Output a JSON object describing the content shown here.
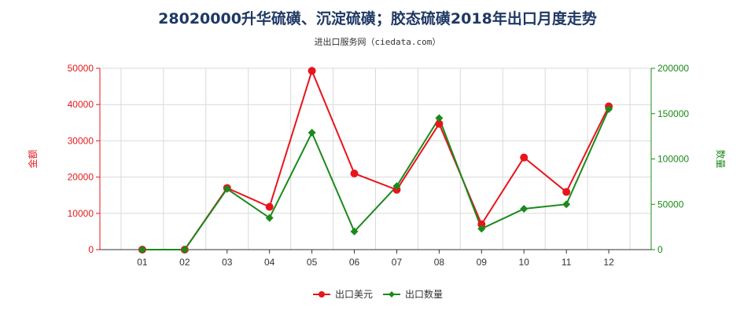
{
  "chart_data": {
    "type": "line",
    "title": "28020000升华硫磺、沉淀硫磺；胶态硫磺2018年出口月度走势",
    "subtitle": "进出口服务网（ciedata.com）",
    "categories": [
      "01",
      "02",
      "03",
      "04",
      "05",
      "06",
      "07",
      "08",
      "09",
      "10",
      "11",
      "12"
    ],
    "left_axis": {
      "label": "金额",
      "ylim": [
        0,
        50000
      ],
      "ticks": [
        "0",
        "10000",
        "20000",
        "30000",
        "40000",
        "50000"
      ],
      "color": "#e31a1c"
    },
    "right_axis": {
      "label": "数量",
      "ylim": [
        0,
        200000
      ],
      "ticks": [
        "0",
        "50000",
        "100000",
        "150000",
        "200000"
      ],
      "color": "#1b8a1b"
    },
    "series": [
      {
        "name": "出口美元",
        "axis": "left",
        "color": "#e8141c",
        "marker": "circle",
        "values": [
          0,
          0,
          17000,
          11800,
          49300,
          21000,
          16500,
          34700,
          7000,
          25400,
          15900,
          39500
        ]
      },
      {
        "name": "出口数量",
        "axis": "right",
        "color": "#1b8a1b",
        "marker": "diamond",
        "values": [
          0,
          0,
          67000,
          35000,
          129000,
          20000,
          70000,
          145000,
          23000,
          45000,
          50000,
          155000
        ]
      }
    ],
    "grid": true,
    "legend_position": "bottom-center"
  },
  "watermark": "进出口服务网"
}
